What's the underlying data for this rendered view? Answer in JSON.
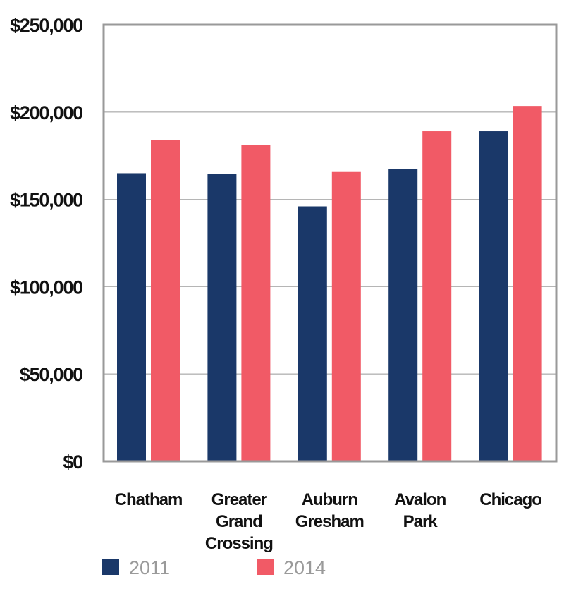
{
  "chart_data": {
    "type": "bar",
    "categories": [
      [
        "Chatham"
      ],
      [
        "Greater",
        "Grand",
        "Crossing"
      ],
      [
        "Auburn",
        "Gresham"
      ],
      [
        "Avalon",
        "Park"
      ],
      [
        "Chicago"
      ]
    ],
    "series": [
      {
        "name": "2011",
        "color": "#1a3869",
        "values": [
          165000,
          164500,
          146000,
          167500,
          189000
        ]
      },
      {
        "name": "2014",
        "color": "#f15a66",
        "values": [
          184000,
          181000,
          165700,
          189000,
          203500
        ]
      }
    ],
    "yticks": [
      {
        "value": 0,
        "label": "$0"
      },
      {
        "value": 50000,
        "label": "$50,000"
      },
      {
        "value": 100000,
        "label": "$100,000"
      },
      {
        "value": 150000,
        "label": "$150,000"
      },
      {
        "value": 200000,
        "label": "$200,000"
      },
      {
        "value": 250000,
        "label": "$250,000"
      }
    ],
    "ylim": [
      0,
      250000
    ],
    "grid": true,
    "legend_position": "bottom",
    "title": "",
    "xlabel": "",
    "ylabel": "",
    "colors": {
      "frame": "#999999",
      "grid": "#b5b5b5"
    }
  }
}
